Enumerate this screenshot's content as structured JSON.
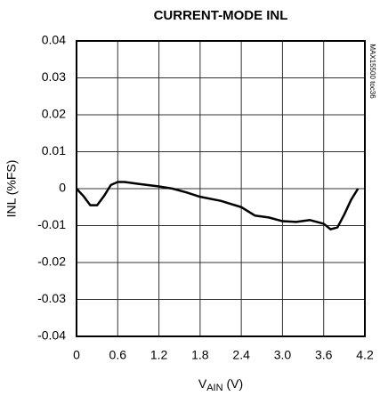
{
  "chart_data": {
    "type": "line",
    "title": "CURRENT-MODE INL",
    "x_label_parts": [
      "V",
      "AIN",
      " (V)"
    ],
    "y_label": "INL (%FS)",
    "side_note": "MAX15500 toc36",
    "x": [
      0,
      0.1,
      0.2,
      0.3,
      0.4,
      0.5,
      0.6,
      0.7,
      0.9,
      1.2,
      1.4,
      1.6,
      1.8,
      2.1,
      2.4,
      2.6,
      2.8,
      3.0,
      3.2,
      3.4,
      3.6,
      3.7,
      3.8,
      3.9,
      4.0,
      4.1
    ],
    "series": [
      {
        "name": "INL",
        "color": "#000000",
        "values": [
          0,
          -0.002,
          -0.0045,
          -0.0045,
          -0.002,
          0.001,
          0.0018,
          0.0018,
          0.0013,
          0.0006,
          0.0,
          -0.001,
          -0.0022,
          -0.0033,
          -0.005,
          -0.0073,
          -0.0078,
          -0.0088,
          -0.009,
          -0.0085,
          -0.0095,
          -0.011,
          -0.0105,
          -0.007,
          -0.003,
          0.0
        ]
      }
    ],
    "xlim": [
      0,
      4.2
    ],
    "xticks": [
      0,
      0.6,
      1.2,
      1.8,
      2.4,
      {
        "value": 3,
        "label": "3.0"
      },
      3.6,
      4.2
    ],
    "ylim": [
      -0.04,
      0.04
    ],
    "yticks": [
      0.04,
      0.03,
      0.02,
      0.01,
      0,
      -0.01,
      -0.02,
      -0.03,
      -0.04
    ],
    "grid": true
  }
}
